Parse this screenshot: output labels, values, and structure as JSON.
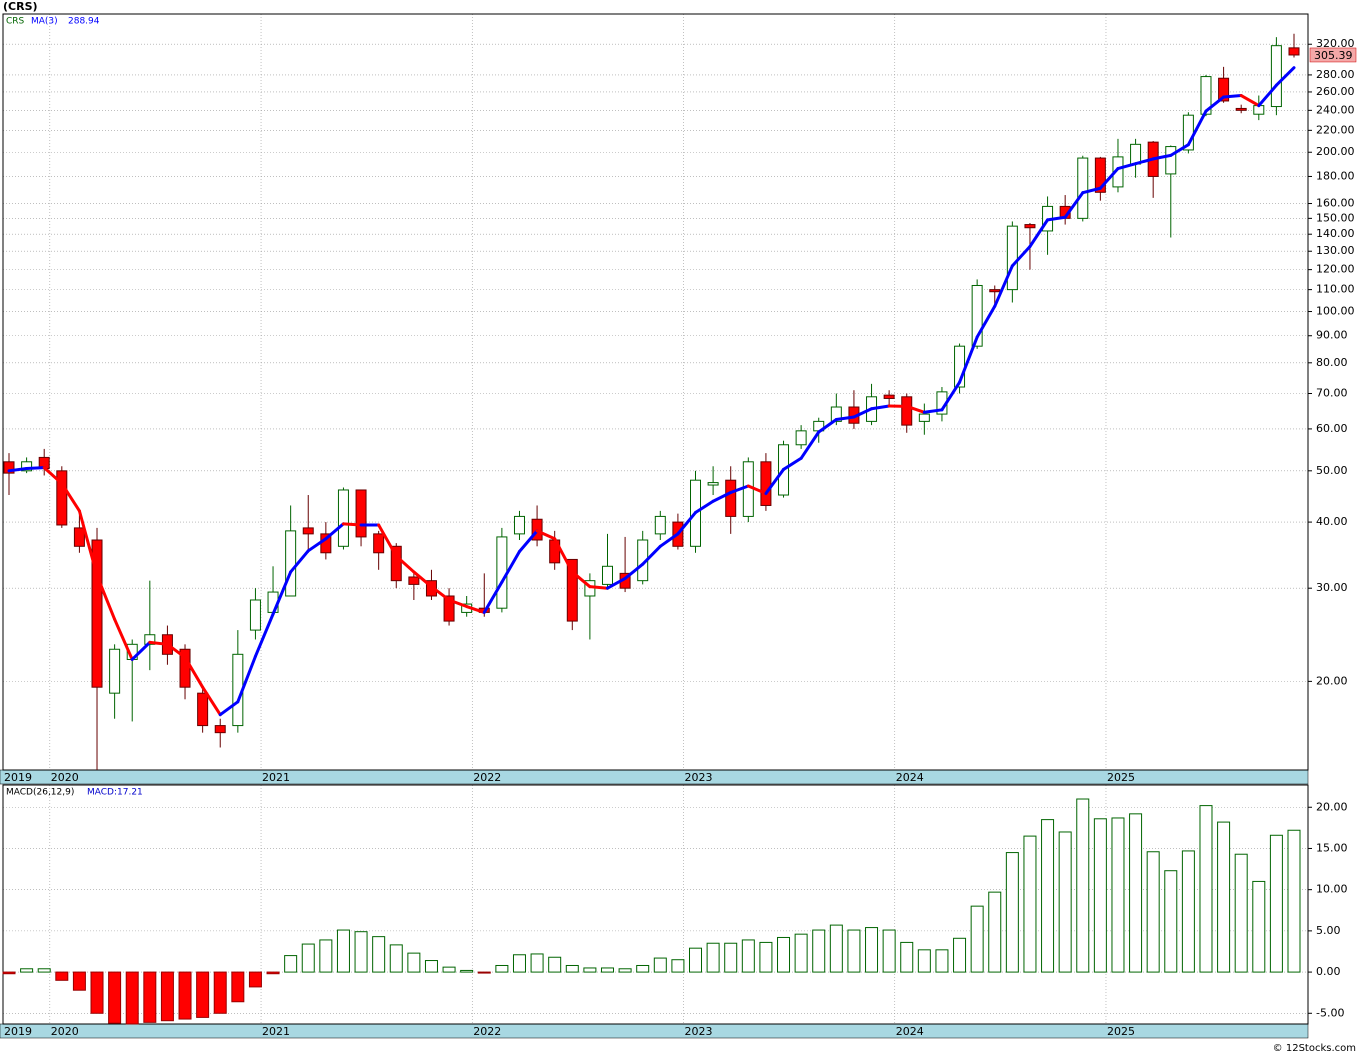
{
  "chart_data": [
    {
      "type": "candlestick",
      "title": "(CRS)",
      "log_scale": true,
      "grid": true,
      "categories": [
        "2019",
        null,
        null,
        "2020",
        null,
        null,
        null,
        null,
        null,
        null,
        null,
        null,
        null,
        null,
        null,
        "2021",
        null,
        null,
        null,
        null,
        null,
        null,
        null,
        null,
        null,
        null,
        null,
        "2022",
        null,
        null,
        null,
        null,
        null,
        null,
        null,
        null,
        null,
        null,
        null,
        "2023",
        null,
        null,
        null,
        null,
        null,
        null,
        null,
        null,
        null,
        null,
        null,
        "2024",
        null,
        null,
        null,
        null,
        null,
        null,
        null,
        null,
        null,
        null,
        null,
        "2025",
        null,
        null,
        null,
        null,
        null,
        null,
        null,
        null,
        null,
        null
      ],
      "series": [
        {
          "name": "CRS",
          "color": "#006400",
          "up_color": "#006400",
          "down_color": "#ff0000",
          "open": [
            52,
            50,
            53,
            50,
            39,
            37,
            19,
            22,
            23.5,
            24.5,
            23,
            19,
            16.5,
            16.5,
            25,
            27,
            29,
            39,
            38,
            36,
            46,
            38,
            36,
            31.5,
            31,
            29,
            27,
            27.5,
            27.5,
            38,
            40.5,
            37,
            34,
            29,
            30.5,
            32,
            31,
            38,
            40,
            36,
            47,
            48,
            41,
            52,
            45,
            56,
            59.5,
            62,
            66,
            62,
            69.5,
            69,
            62,
            64,
            72,
            86,
            110,
            110,
            146,
            142,
            158,
            150,
            195,
            172,
            190,
            209,
            182,
            202,
            236,
            276,
            242,
            236,
            244,
            315
          ],
          "high": [
            54,
            53,
            55,
            51,
            42,
            39,
            23.5,
            24,
            31,
            25.5,
            23.5,
            19.5,
            17,
            25,
            30,
            33,
            43,
            45,
            40,
            46.5,
            46,
            38.5,
            36.5,
            32,
            32.5,
            30,
            29,
            32,
            39,
            42,
            43,
            38.5,
            34,
            32,
            38,
            37.5,
            38.5,
            42,
            41.5,
            50,
            51,
            51,
            53,
            54,
            57,
            61,
            63,
            70,
            71,
            73,
            71,
            70,
            67,
            72,
            87,
            115,
            112,
            148,
            147,
            165,
            166,
            197,
            196,
            212,
            212,
            210,
            206,
            238,
            280,
            290,
            246,
            256,
            330,
            335
          ],
          "low": [
            45,
            49.5,
            49,
            39,
            35,
            13.6,
            17,
            16.8,
            21,
            21.5,
            18.5,
            16,
            15,
            16,
            24,
            27,
            29,
            35,
            34,
            35.5,
            36,
            32.5,
            30,
            28.5,
            28.5,
            25.5,
            26.5,
            26.5,
            27,
            37,
            36,
            32.5,
            25,
            24,
            30,
            29.5,
            30.5,
            37,
            35.5,
            35,
            45,
            38,
            40,
            42,
            44.5,
            55,
            56.5,
            61,
            60,
            61,
            66,
            59,
            58.5,
            62,
            70,
            85,
            103,
            104,
            120,
            128,
            146,
            148,
            162,
            168,
            179,
            164,
            138,
            199,
            234,
            248,
            237,
            230,
            235,
            302
          ],
          "close": [
            49.5,
            52,
            50.5,
            39.5,
            36,
            19.5,
            23,
            23.5,
            24.5,
            22.5,
            19.5,
            16.5,
            16,
            22.5,
            28.5,
            29.5,
            38.5,
            38,
            35,
            46,
            37.5,
            35,
            31,
            30.5,
            29,
            26,
            28,
            27,
            37.5,
            41,
            37,
            33.5,
            26,
            31,
            33,
            30,
            37,
            41,
            36,
            48,
            47.5,
            41,
            52,
            43,
            56,
            59.5,
            62,
            66,
            61.5,
            69,
            68.5,
            61,
            64,
            70.5,
            86,
            112,
            109,
            145,
            144,
            158,
            150,
            195,
            168,
            196,
            207,
            180,
            205,
            235,
            278,
            250,
            240,
            245,
            318,
            305.39
          ]
        },
        {
          "name": "MA(3)",
          "type": "line",
          "color": "#0000ff",
          "up_color": "#0000ff",
          "down_color": "#ff0000",
          "values": [
            50,
            50.5,
            50.7,
            47.3,
            42,
            31.7,
            26.2,
            22,
            23.7,
            23.5,
            22.2,
            19.5,
            17.3,
            18.3,
            22.3,
            26.8,
            32.2,
            35.3,
            37.2,
            39.7,
            39.5,
            39.5,
            34.5,
            32.2,
            30.2,
            28.5,
            27.7,
            27,
            30.8,
            35.2,
            38.5,
            37.2,
            32.2,
            30.2,
            30,
            31.3,
            33.3,
            36,
            38,
            41.7,
            43.8,
            45.5,
            46.8,
            45.3,
            50.3,
            52.8,
            59.2,
            62.5,
            63.2,
            65.5,
            66.3,
            66.2,
            64.5,
            65.2,
            73.5,
            89.5,
            102.3,
            122,
            132.7,
            149,
            150.7,
            167.7,
            171,
            186.3,
            190.3,
            194.3,
            197.3,
            206.7,
            239.3,
            254.3,
            256,
            245,
            267.7,
            288.94
          ]
        }
      ],
      "ylim": [
        13.6,
        365
      ],
      "yticks": [
        {
          "value": 20,
          "label": "20.00"
        },
        {
          "value": 30,
          "label": "30.00"
        },
        {
          "value": 40,
          "label": "40.00"
        },
        {
          "value": 50,
          "label": "50.00"
        },
        {
          "value": 60,
          "label": "60.00"
        },
        {
          "value": 70,
          "label": "70.00"
        },
        {
          "value": 80,
          "label": "80.00"
        },
        {
          "value": 90,
          "label": "90.00"
        },
        {
          "value": 100,
          "label": "100.00"
        },
        {
          "value": 110,
          "label": "110.00"
        },
        {
          "value": 120,
          "label": "120.00"
        },
        {
          "value": 130,
          "label": "130.00"
        },
        {
          "value": 140,
          "label": "140.00"
        },
        {
          "value": 150,
          "label": "150.00"
        },
        {
          "value": 160,
          "label": "160.00"
        },
        {
          "value": 180,
          "label": "180.00"
        },
        {
          "value": 200,
          "label": "200.00"
        },
        {
          "value": 220,
          "label": "220.00"
        },
        {
          "value": 240,
          "label": "240.00"
        },
        {
          "value": 260,
          "label": "260.00"
        },
        {
          "value": 280,
          "label": "280.00"
        },
        {
          "value": 320,
          "label": "320.00"
        }
      ]
    },
    {
      "type": "bar",
      "title": "MACD(26,12,9)",
      "grid": true,
      "series": [
        {
          "name": "MACD:",
          "color": "#006400",
          "up_color": "#006400",
          "down_color": "#ff0000",
          "values": [
            -0.2,
            0.4,
            0.4,
            -1,
            -2.2,
            -5,
            -6.2,
            -6.3,
            -6.1,
            -5.9,
            -5.7,
            -5.5,
            -5,
            -3.6,
            -1.8,
            -0.2,
            2,
            3.4,
            3.9,
            5.1,
            4.9,
            4.3,
            3.3,
            2.3,
            1.4,
            0.6,
            0.2,
            -0.1,
            0.8,
            2.1,
            2.2,
            1.8,
            0.8,
            0.5,
            0.5,
            0.4,
            0.8,
            1.7,
            1.5,
            2.9,
            3.5,
            3.5,
            3.9,
            3.6,
            4.2,
            4.6,
            5.1,
            5.7,
            5.1,
            5.4,
            5.1,
            3.6,
            2.7,
            2.7,
            4.1,
            8,
            9.7,
            14.5,
            16.5,
            18.5,
            17,
            21,
            18.6,
            18.7,
            19.2,
            14.6,
            12.3,
            14.7,
            20.2,
            18.2,
            14.3,
            11,
            16.6,
            17.21
          ]
        }
      ],
      "ylim": [
        -6.3,
        22.7
      ],
      "yticks": [
        {
          "value": -5,
          "label": "-5.00"
        },
        {
          "value": 0,
          "label": "0.00"
        },
        {
          "value": 5,
          "label": "5.00"
        },
        {
          "value": 10,
          "label": "10.00"
        },
        {
          "value": 15,
          "label": "15.00"
        },
        {
          "value": 20,
          "label": "20.00"
        }
      ]
    }
  ],
  "footer": "© 12Stocks.com"
}
